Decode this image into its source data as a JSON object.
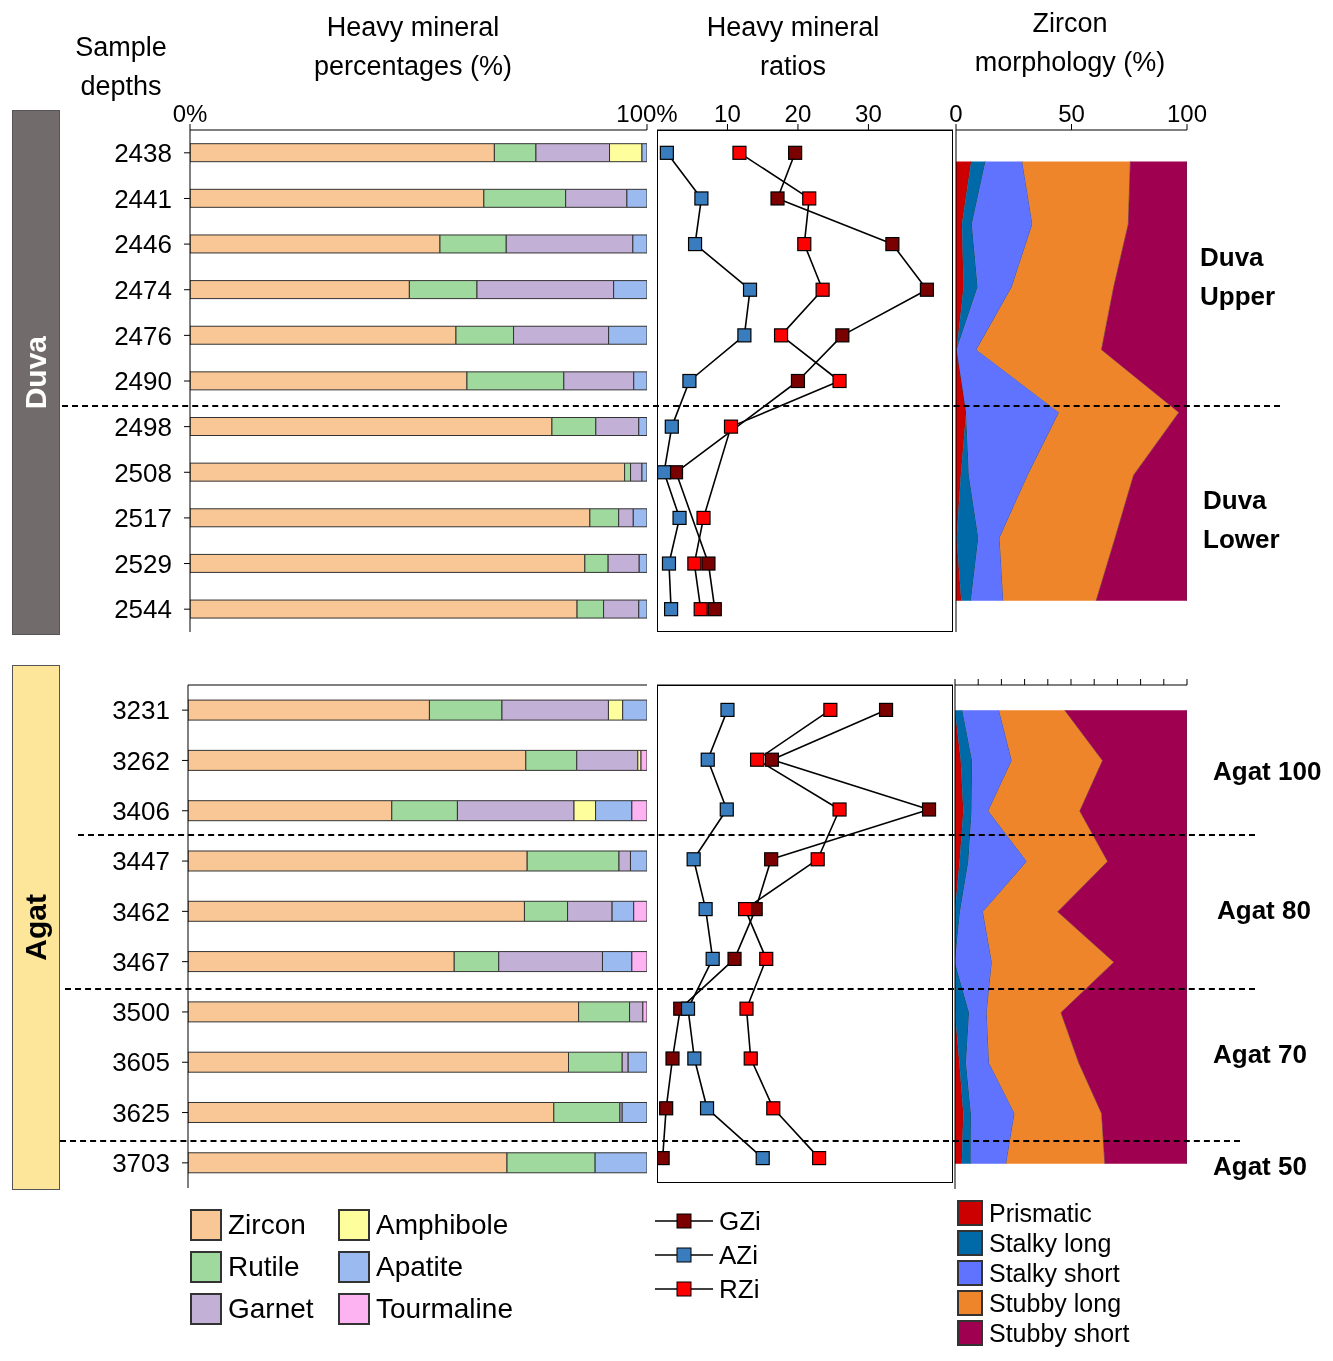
{
  "chart_data": [
    {
      "type": "bar",
      "orientation": "horizontal",
      "stacked": true,
      "title": "Heavy mineral percentages (%)",
      "ylabel": "Sample depths",
      "annotations": [
        "Duva"
      ],
      "categories": [
        "2438",
        "2441",
        "2446",
        "2474",
        "2476",
        "2490",
        "2498",
        "2508",
        "2517",
        "2529",
        "2544"
      ],
      "xlim": [
        0,
        100
      ],
      "xticks": [
        {
          "value": 0,
          "label": "0%"
        },
        {
          "value": 100,
          "label": "100%"
        }
      ],
      "series": [
        {
          "color": "#f9c795",
          "values": [
            66.6,
            64.3,
            54.7,
            48,
            58.2,
            60.6,
            79.2,
            95.1,
            87.5,
            86.4,
            84.7
          ]
        },
        {
          "color": "#a0d99e",
          "values": [
            9.1,
            17.9,
            14.5,
            14.8,
            12.6,
            21.2,
            9.6,
            1.3,
            6.3,
            5.1,
            5.8
          ]
        },
        {
          "color": "#c3b0d6",
          "values": [
            16.1,
            13.4,
            27.7,
            29.9,
            20.8,
            15.3,
            9.4,
            2.5,
            3.2,
            6.8,
            7.7
          ]
        },
        {
          "color": "#fefe9d",
          "values": [
            7.1,
            0,
            0,
            0,
            0,
            0,
            0,
            0,
            0,
            0,
            0
          ]
        },
        {
          "color": "#9bbaf0",
          "values": [
            1.1,
            4.4,
            3.1,
            7.3,
            8.4,
            2.9,
            1.8,
            1.1,
            3,
            1.7,
            1.8
          ]
        }
      ]
    },
    {
      "type": "line",
      "orientation": "horizontal",
      "title": "Heavy mineral ratios",
      "tick_labels": "x",
      "marker": "square",
      "categories": [
        "2438",
        "2441",
        "2446",
        "2474",
        "2476",
        "2490",
        "2498",
        "2508",
        "2517",
        "2529",
        "2544"
      ],
      "xlim": [
        0,
        42
      ],
      "xticks": [
        10,
        20,
        30
      ],
      "series": [
        {
          "color": "#7b0000",
          "values": [
            19.6,
            17.1,
            33.4,
            38.3,
            26.3,
            20,
            null,
            2.7,
            null,
            7.3,
            8.2
          ]
        },
        {
          "color": "#3a7dbf",
          "values": [
            1.4,
            6.3,
            5.4,
            13.2,
            12.4,
            4.6,
            2.1,
            1,
            3.2,
            1.7,
            2
          ]
        },
        {
          "color": "#ff0000",
          "values": [
            11.7,
            21.6,
            20.9,
            23.5,
            17.6,
            25.9,
            10.5,
            null,
            6.6,
            5.3,
            6.2
          ]
        }
      ]
    },
    {
      "type": "area",
      "orientation": "horizontal",
      "stacked": true,
      "title": "Zircon morphology (%)",
      "tick_labels": "x",
      "annotations": [
        "Duva Upper",
        "Duva Lower"
      ],
      "categories": [
        null,
        null,
        null,
        null,
        null,
        null,
        null,
        null
      ],
      "xlim": [
        0,
        100
      ],
      "xticks": [
        0,
        50,
        100
      ],
      "series": [
        {
          "color": "#cc0000",
          "values": [
            6.6,
            2.6,
            3.3,
            0.3,
            4.4,
            2.1,
            0.3,
            2.3
          ]
        },
        {
          "color": "#006aa8",
          "values": [
            6.2,
            4.3,
            6.1,
            0,
            0,
            3.5,
            9.4,
            4.2
          ]
        },
        {
          "color": "#5f73ff",
          "values": [
            15.9,
            26.2,
            14.8,
            8.6,
            40.2,
            25.5,
            9.2,
            14
          ]
        },
        {
          "color": "#ef852a",
          "values": [
            46.8,
            41.5,
            44.1,
            54.1,
            51.9,
            45.8,
            50,
            40.2
          ]
        },
        {
          "color": "#a00050",
          "values": [
            24.5,
            25.4,
            31.7,
            37,
            3.5,
            23.1,
            31.1,
            39.3
          ]
        }
      ]
    },
    {
      "type": "bar",
      "orientation": "horizontal",
      "stacked": true,
      "tick_labels": "y",
      "legend": "bottom",
      "annotations": [
        "Agat"
      ],
      "categories": [
        "3231",
        "3262",
        "3406",
        "3447",
        "3462",
        "3467",
        "3500",
        "3605",
        "3625",
        "3703"
      ],
      "xlim": [
        0,
        100
      ],
      "series": [
        {
          "name": "Zircon",
          "color": "#f9c795",
          "values": [
            52.6,
            73.6,
            44.4,
            73.9,
            73.3,
            58,
            85.1,
            82.9,
            79.7,
            69.5
          ]
        },
        {
          "name": "Rutile",
          "color": "#a0d99e",
          "values": [
            15.8,
            11.1,
            14.3,
            20,
            9.4,
            9.7,
            11.1,
            11.7,
            14.4,
            19.2
          ]
        },
        {
          "name": "Garnet",
          "color": "#c3b0d6",
          "values": [
            23.2,
            13.3,
            25.4,
            2.5,
            9.7,
            22.6,
            2.9,
            1.3,
            0.5,
            0
          ]
        },
        {
          "name": "Amphibole",
          "color": "#fefe9d",
          "values": [
            3.1,
            0.7,
            4.7,
            0,
            0,
            0,
            0,
            0,
            0,
            0
          ]
        },
        {
          "name": "Apatite",
          "color": "#9bbaf0",
          "values": [
            5.3,
            0,
            7.9,
            3.6,
            4.7,
            6.4,
            0,
            4.1,
            5.4,
            11.3
          ]
        },
        {
          "name": "Tourmaline",
          "color": "#fdb2f2",
          "values": [
            0,
            1.3,
            3.3,
            0,
            2.9,
            3.3,
            0.9,
            0,
            0,
            0
          ]
        }
      ]
    },
    {
      "type": "line",
      "orientation": "horizontal",
      "tick_labels": false,
      "marker": "square",
      "legend": "bottom",
      "categories": [
        "3231",
        "3262",
        "3406",
        "3447",
        "3462",
        "3467",
        "3500",
        "3605",
        "3625",
        "3703"
      ],
      "xlim": [
        0,
        42
      ],
      "series": [
        {
          "name": "GZi",
          "color": "#7b0000",
          "values": [
            32.5,
            16.3,
            38.6,
            16.2,
            14,
            11,
            3.3,
            2.2,
            1.3,
            0.8
          ]
        },
        {
          "name": "AZi",
          "color": "#3a7dbf",
          "values": [
            10,
            7.2,
            9.9,
            5.2,
            6.9,
            7.9,
            4.4,
            5.3,
            7.1,
            15
          ]
        },
        {
          "name": "RZi",
          "color": "#ff0000",
          "values": [
            24.6,
            14.2,
            25.9,
            22.8,
            12.5,
            15.5,
            12.7,
            13.3,
            16.5,
            23
          ]
        }
      ]
    },
    {
      "type": "area",
      "orientation": "horizontal",
      "stacked": true,
      "tick_labels": false,
      "legend": "bottom",
      "annotations": [
        "Agat 100",
        "Agat 80",
        "Agat 70",
        "Agat 50"
      ],
      "categories": [
        null,
        null,
        null,
        null,
        null,
        null,
        null,
        null,
        null,
        null
      ],
      "xlim": [
        0,
        100
      ],
      "xticks": [
        {
          "value": 0,
          "label": null
        },
        {
          "value": 10,
          "label": null
        },
        {
          "value": 20,
          "label": null
        },
        {
          "value": 30,
          "label": null
        },
        {
          "value": 40,
          "label": null
        },
        {
          "value": 50,
          "label": null
        },
        {
          "value": 60,
          "label": null
        },
        {
          "value": 70,
          "label": null
        },
        {
          "value": 80,
          "label": null
        },
        {
          "value": 90,
          "label": null
        },
        {
          "value": 100,
          "label": null
        }
      ],
      "series": [
        {
          "name": "Prismatic",
          "color": "#cc0000",
          "values": [
            0,
            2.5,
            3.6,
            2,
            0,
            0,
            0,
            1.9,
            3.6,
            2.9
          ]
        },
        {
          "name": "Stalky long",
          "color": "#006aa8",
          "values": [
            3.2,
            4.9,
            3.6,
            3.8,
            2.2,
            0,
            6.1,
            2.9,
            3.3,
            3.9
          ]
        },
        {
          "name": "Stalky short",
          "color": "#5f73ff",
          "values": [
            15.8,
            17.1,
            7.2,
            25.2,
            9.9,
            15.9,
            7.6,
            9.9,
            18.8,
            15.3
          ]
        },
        {
          "name": "Stubby long",
          "color": "#ef852a",
          "values": [
            28.3,
            39.1,
            39.4,
            34.8,
            32.2,
            52.6,
            32,
            38.7,
            37.5,
            42.5
          ]
        },
        {
          "name": "Stubby short",
          "color": "#a00050",
          "values": [
            52.7,
            36.4,
            46.2,
            34.2,
            55.7,
            31.5,
            54.3,
            46.6,
            36.8,
            35.4
          ]
        }
      ]
    }
  ]
}
